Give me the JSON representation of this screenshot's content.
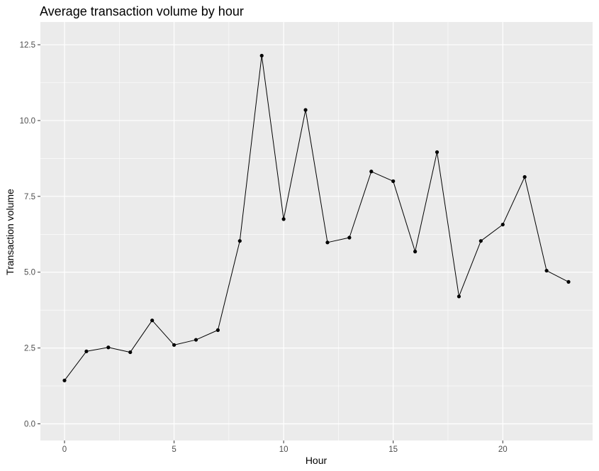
{
  "chart_data": {
    "type": "line",
    "title": "Average transaction volume by hour",
    "xlabel": "Hour",
    "ylabel": "Transaction volume",
    "xlim": [
      -1.1,
      24.1
    ],
    "ylim": [
      -0.55,
      13.25
    ],
    "x_ticks": [
      0,
      5,
      10,
      15,
      20
    ],
    "x_tick_labels": [
      "0",
      "5",
      "10",
      "15",
      "20"
    ],
    "y_ticks": [
      0,
      2.5,
      5,
      7.5,
      10,
      12.5
    ],
    "y_tick_labels": [
      "0.0",
      "2.5",
      "5.0",
      "7.5",
      "10.0",
      "12.5"
    ],
    "grid": true,
    "series": [
      {
        "x": [
          0,
          1,
          2,
          3,
          4,
          5,
          6,
          7,
          8,
          9,
          10,
          11,
          12,
          13,
          14,
          15,
          16,
          17,
          18,
          19,
          20,
          21,
          22,
          23
        ],
        "y": [
          1.43,
          2.39,
          2.52,
          2.36,
          3.41,
          2.6,
          2.77,
          3.09,
          6.03,
          12.14,
          6.75,
          10.35,
          5.98,
          6.14,
          8.32,
          8.0,
          5.68,
          8.96,
          4.2,
          6.03,
          6.57,
          8.14,
          5.05,
          4.68
        ],
        "color": "#000000"
      }
    ],
    "panel_background": "#ebebeb",
    "grid_color": "#ffffff"
  }
}
